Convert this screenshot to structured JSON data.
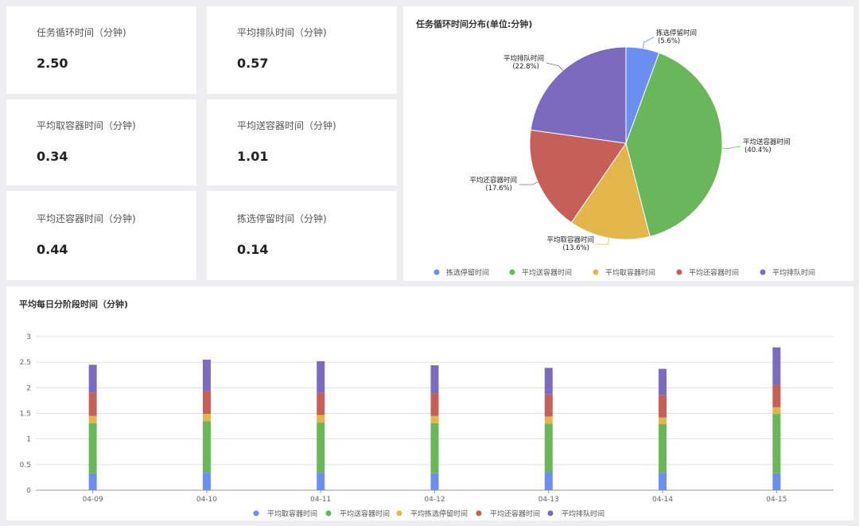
{
  "kpis": [
    {
      "label": "任务循环时间（分钟)",
      "value": "2.50"
    },
    {
      "label": "平均排队时间（分钟)",
      "value": "0.57"
    },
    {
      "label": "平均取容器时间（分钟)",
      "value": "0.34"
    },
    {
      "label": "平均送容器时间（分钟)",
      "value": "1.01"
    },
    {
      "label": "平均还容器时间（分钟)",
      "value": "0.44"
    },
    {
      "label": "拣选停留时间（分钟)",
      "value": "0.14"
    }
  ],
  "colors": {
    "blue": "#6b8ff0",
    "green": "#6ab65a",
    "yellow": "#e2b64a",
    "red": "#c55f58",
    "purple": "#7b6bbf"
  },
  "chart_data": [
    {
      "type": "pie",
      "title": "任务循环时间分布(单位:分钟)",
      "slices": [
        {
          "name": "拣选停留时间",
          "pct": 5.6,
          "label": "(5.6%)",
          "color": "#6b8ff0"
        },
        {
          "name": "平均送容器时间",
          "pct": 40.4,
          "label": "(40.4%)",
          "color": "#6ab65a"
        },
        {
          "name": "平均取容器时间",
          "pct": 13.6,
          "label": "(13.6%)",
          "color": "#e2b64a"
        },
        {
          "name": "平均还容器时间",
          "pct": 17.6,
          "label": "(17.6%)",
          "color": "#c55f58"
        },
        {
          "name": "平均排队时间",
          "pct": 22.8,
          "label": "(22.8%)",
          "color": "#7b6bbf"
        }
      ],
      "legend": [
        "拣选停留时间",
        "平均送容器时间",
        "平均取容器时间",
        "平均还容器时间",
        "平均排队时间"
      ],
      "legend_position": "bottom"
    },
    {
      "type": "bar",
      "stacked": true,
      "title": "平均每日分阶段时间（分钟)",
      "categories": [
        "04-09",
        "04-10",
        "04-11",
        "04-12",
        "04-13",
        "04-14",
        "04-15"
      ],
      "ylim": [
        0,
        3
      ],
      "yticks": [
        "0",
        "0.5",
        "1",
        "1.5",
        "2",
        "2.5",
        "3"
      ],
      "grid": true,
      "legend_position": "bottom",
      "series": [
        {
          "name": "平均取容器时间",
          "color": "#6b8ff0",
          "values": [
            0.33,
            0.34,
            0.34,
            0.33,
            0.35,
            0.34,
            0.33
          ]
        },
        {
          "name": "平均送容器时间",
          "color": "#6ab65a",
          "values": [
            0.98,
            1.01,
            0.98,
            0.98,
            0.95,
            0.95,
            1.16
          ]
        },
        {
          "name": "平均拣选停留时间",
          "color": "#e2b64a",
          "values": [
            0.14,
            0.14,
            0.15,
            0.14,
            0.14,
            0.13,
            0.13
          ]
        },
        {
          "name": "平均还容器时间",
          "color": "#c55f58",
          "values": [
            0.45,
            0.44,
            0.44,
            0.44,
            0.43,
            0.44,
            0.44
          ]
        },
        {
          "name": "平均排队时间",
          "color": "#7b6bbf",
          "values": [
            0.55,
            0.62,
            0.61,
            0.55,
            0.52,
            0.51,
            0.73
          ]
        }
      ]
    }
  ]
}
